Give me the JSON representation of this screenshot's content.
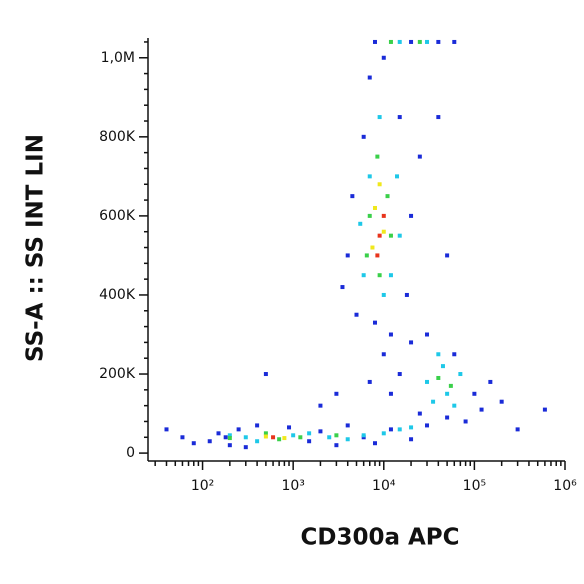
{
  "chart_data": {
    "type": "scatter",
    "x_label": "CD300a APC",
    "y_label": "SS-A :: SS INT LIN",
    "xscale": "log",
    "xlim": [
      25,
      1000000
    ],
    "xticks": [
      {
        "value": 100,
        "label": "10²"
      },
      {
        "value": 1000,
        "label": "10³"
      },
      {
        "value": 10000,
        "label": "10⁴"
      },
      {
        "value": 100000,
        "label": "10⁵"
      },
      {
        "value": 1000000,
        "label": "10⁶"
      }
    ],
    "xminorticks": [
      30,
      40,
      50,
      60,
      70,
      80,
      90,
      200,
      300,
      400,
      500,
      600,
      700,
      800,
      900,
      2000,
      3000,
      4000,
      5000,
      6000,
      7000,
      8000,
      9000,
      20000,
      30000,
      40000,
      50000,
      60000,
      70000,
      80000,
      90000,
      200000,
      300000,
      400000,
      500000,
      600000,
      700000,
      800000,
      900000
    ],
    "ylim": [
      -20000,
      1050000
    ],
    "yticks": [
      0,
      {
        "value": 200000,
        "label": "200K"
      },
      {
        "value": 400000,
        "label": "400K"
      },
      {
        "value": 600000,
        "label": "600K"
      },
      {
        "value": 800000,
        "label": "800K"
      },
      {
        "value": 1000000,
        "label": "1,0M"
      }
    ],
    "yminorticks": [
      40000,
      80000,
      120000,
      160000,
      240000,
      280000,
      320000,
      360000,
      440000,
      480000,
      520000,
      560000,
      640000,
      680000,
      720000,
      760000,
      840000,
      880000,
      920000,
      960000,
      1040000
    ],
    "series": [
      {
        "color": "#1a2bd8",
        "x": [
          120,
          150,
          200,
          250,
          300,
          400,
          180,
          900,
          1500,
          2000,
          3000,
          4000,
          6000,
          8000,
          12000,
          20000,
          30000,
          50000,
          60,
          80,
          40,
          4000,
          5000,
          6000,
          7000,
          12000,
          15000,
          20000,
          18000,
          4500,
          10000,
          25000,
          3500,
          8000,
          15000,
          12000,
          10000,
          20000,
          7000,
          3000,
          2000,
          25000,
          100000,
          150000,
          80000,
          30000,
          60000,
          120000,
          200000,
          600000,
          300000,
          500,
          50000,
          40000,
          20000,
          40000,
          60000,
          8000
        ],
        "y": [
          30000,
          50000,
          20000,
          60000,
          15000,
          70000,
          40000,
          65000,
          30000,
          55000,
          20000,
          70000,
          40000,
          25000,
          60000,
          35000,
          70000,
          90000,
          40000,
          25000,
          60000,
          500000,
          350000,
          800000,
          950000,
          300000,
          850000,
          600000,
          400000,
          650000,
          1000000,
          750000,
          420000,
          330000,
          200000,
          150000,
          250000,
          280000,
          180000,
          150000,
          120000,
          100000,
          150000,
          180000,
          80000,
          300000,
          250000,
          110000,
          130000,
          110000,
          60000,
          200000,
          500000,
          850000,
          1040000,
          1040000,
          1040000,
          1040000
        ]
      },
      {
        "color": "#1ec8e8",
        "x": [
          300,
          400,
          1000,
          1500,
          2500,
          4000,
          6000,
          10000,
          15000,
          20000,
          200,
          6000,
          7000,
          12000,
          14000,
          9000,
          10000,
          5500,
          15000,
          30000,
          40000,
          50000,
          70000,
          35000,
          60000,
          45000,
          15000,
          30000
        ],
        "y": [
          40000,
          30000,
          45000,
          50000,
          40000,
          35000,
          45000,
          50000,
          60000,
          65000,
          45000,
          450000,
          700000,
          450000,
          700000,
          850000,
          400000,
          580000,
          550000,
          180000,
          250000,
          150000,
          200000,
          130000,
          120000,
          220000,
          1040000,
          1040000
        ]
      },
      {
        "color": "#3ad04a",
        "x": [
          500,
          700,
          1200,
          3000,
          200,
          7000,
          11000,
          8500,
          9000,
          12000,
          6500,
          40000,
          55000,
          12000,
          25000
        ],
        "y": [
          50000,
          35000,
          40000,
          45000,
          38000,
          600000,
          650000,
          750000,
          450000,
          550000,
          500000,
          190000,
          170000,
          1040000,
          1040000
        ]
      },
      {
        "color": "#f0e81c",
        "x": [
          500,
          800,
          8000,
          10000,
          9000,
          7500
        ],
        "y": [
          42000,
          38000,
          620000,
          560000,
          680000,
          520000
        ]
      },
      {
        "color": "#e8341c",
        "x": [
          600,
          9000,
          8500,
          10000
        ],
        "y": [
          40000,
          550000,
          500000,
          600000
        ]
      }
    ]
  }
}
